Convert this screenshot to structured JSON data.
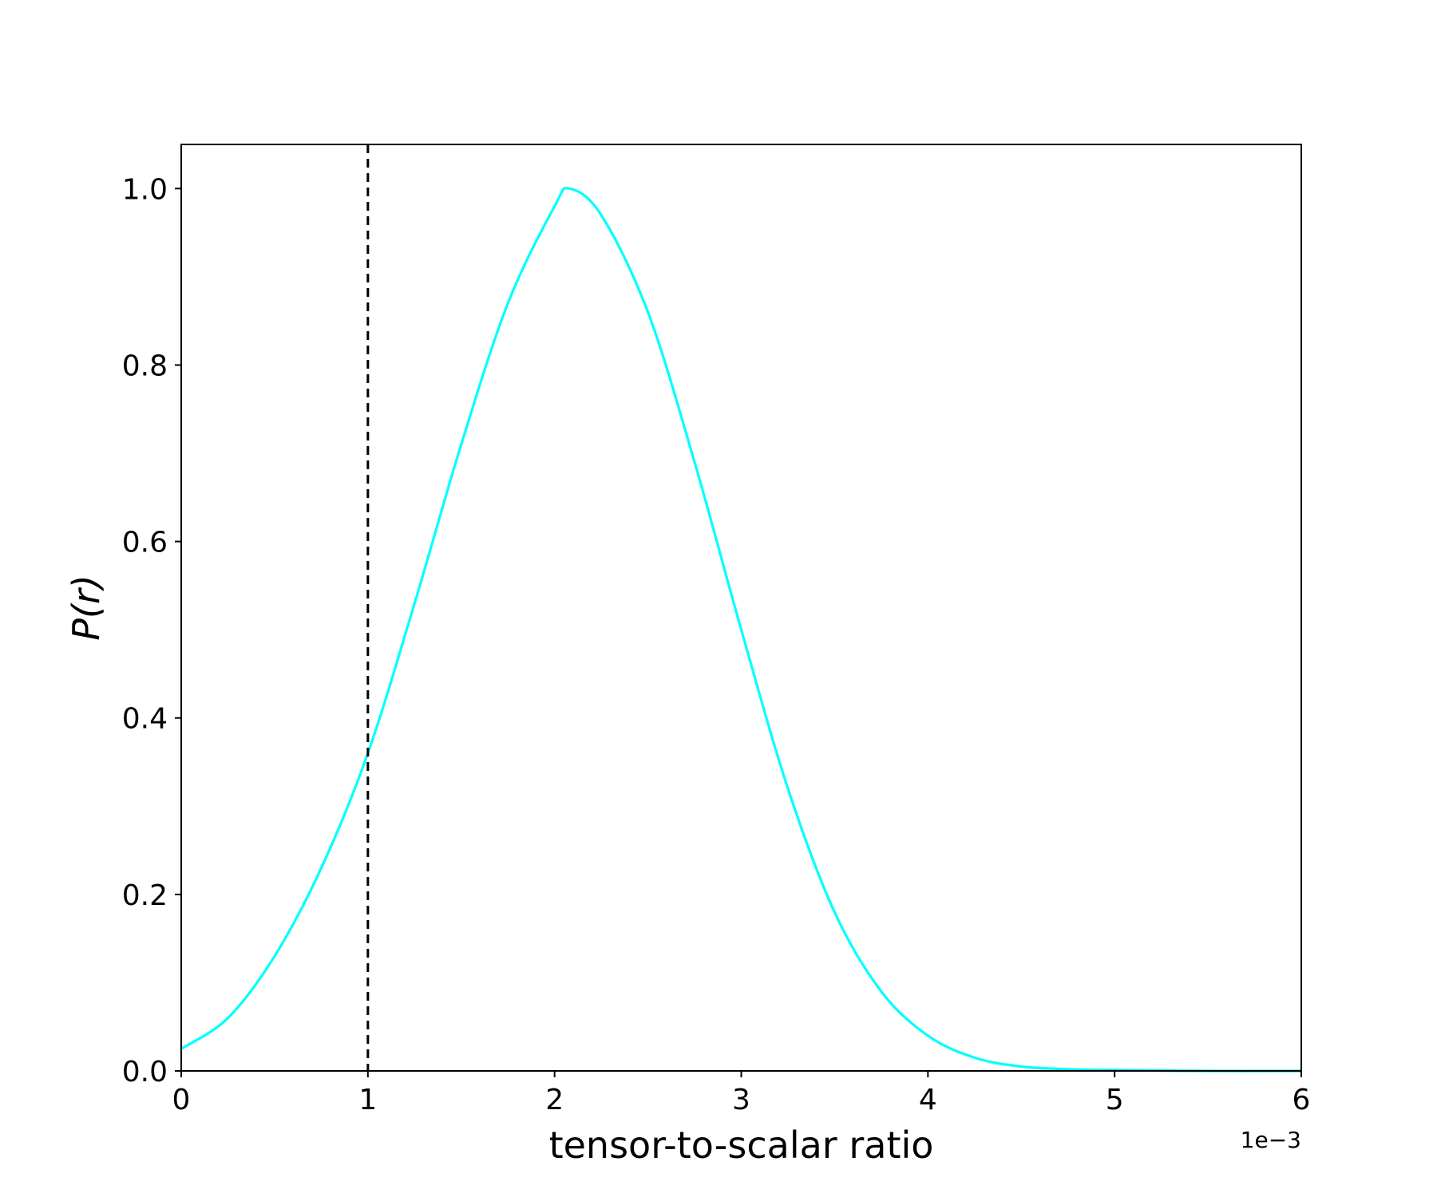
{
  "chart_data": {
    "type": "line",
    "title": "",
    "xlabel": "tensor-to-scalar ratio",
    "ylabel": "P(r)",
    "x_offset_label": "1e−3",
    "x_scale": 0.001,
    "xlim": [
      0,
      6
    ],
    "ylim": [
      0.0,
      1.05
    ],
    "x_ticks": [
      0,
      1,
      2,
      3,
      4,
      5,
      6
    ],
    "x_tick_labels": [
      "0",
      "1",
      "2",
      "3",
      "4",
      "5",
      "6"
    ],
    "y_ticks": [
      0.0,
      0.2,
      0.4,
      0.6,
      0.8,
      1.0
    ],
    "y_tick_labels": [
      "0.0",
      "0.2",
      "0.4",
      "0.6",
      "0.8",
      "1.0"
    ],
    "grid": false,
    "legend": "none",
    "series": [
      {
        "color": "#00ffff",
        "x": [
          0.0,
          0.25,
          0.5,
          0.75,
          1.0,
          1.25,
          1.5,
          1.75,
          2.0,
          2.08,
          2.25,
          2.5,
          2.75,
          3.0,
          3.25,
          3.5,
          3.75,
          4.0,
          4.25,
          4.5,
          4.75,
          5.0,
          5.5,
          6.0
        ],
        "y": [
          0.025,
          0.06,
          0.13,
          0.23,
          0.36,
          0.53,
          0.71,
          0.87,
          0.98,
          1.0,
          0.97,
          0.86,
          0.69,
          0.5,
          0.32,
          0.18,
          0.09,
          0.04,
          0.015,
          0.005,
          0.002,
          0.001,
          0.0,
          0.0
        ]
      }
    ],
    "reference_line": {
      "x": 1.0,
      "style": "dashed",
      "color": "#000000"
    }
  }
}
